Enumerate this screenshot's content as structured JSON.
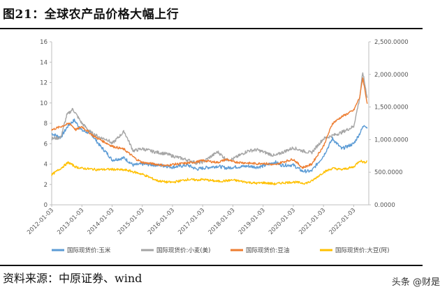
{
  "title": "图21：全球农产品价格大幅上行",
  "source": "资料来源：中原证券、wind",
  "watermark": "头条 @财是",
  "chart_data": {
    "type": "line",
    "title": "图21：全球农产品价格大幅上行",
    "xlabel": "",
    "ylabel": "",
    "x_ticks": [
      "2012-01-03",
      "2013-01-03",
      "2014-01-03",
      "2015-01-03",
      "2016-01-03",
      "2017-01-03",
      "2018-01-03",
      "2019-01-03",
      "2020-01-03",
      "2021-01-03",
      "2022-01-03"
    ],
    "y_left_ticks": [
      "0",
      "2",
      "4",
      "6",
      "8",
      "10",
      "12",
      "14",
      "16"
    ],
    "y_right_ticks": [
      "0.0000",
      "500.0000",
      "1,000.0000",
      "1,500.0000",
      "2,000.0000",
      "2,500.0000"
    ],
    "ylim_left": [
      0,
      16
    ],
    "ylim_right": [
      0,
      2500
    ],
    "x_range": [
      2012.0,
      2022.5
    ],
    "grid": false,
    "legend_position": "bottom",
    "series": [
      {
        "name": "国际现货价:玉米",
        "axis": "left",
        "color": "#5b9bd5",
        "points": [
          [
            2012.0,
            7.0
          ],
          [
            2012.3,
            6.6
          ],
          [
            2012.55,
            7.8
          ],
          [
            2012.75,
            8.3
          ],
          [
            2013.0,
            7.3
          ],
          [
            2013.3,
            7.0
          ],
          [
            2013.6,
            5.8
          ],
          [
            2013.85,
            5.0
          ],
          [
            2014.0,
            4.4
          ],
          [
            2014.4,
            4.6
          ],
          [
            2014.7,
            3.9
          ],
          [
            2015.0,
            4.0
          ],
          [
            2015.5,
            3.9
          ],
          [
            2015.8,
            3.8
          ],
          [
            2016.0,
            3.7
          ],
          [
            2016.5,
            3.9
          ],
          [
            2016.8,
            3.5
          ],
          [
            2017.0,
            3.6
          ],
          [
            2017.5,
            3.8
          ],
          [
            2017.8,
            3.6
          ],
          [
            2018.0,
            3.7
          ],
          [
            2018.5,
            3.8
          ],
          [
            2018.8,
            3.7
          ],
          [
            2019.0,
            3.8
          ],
          [
            2019.4,
            4.2
          ],
          [
            2019.6,
            3.9
          ],
          [
            2020.0,
            3.9
          ],
          [
            2020.3,
            3.3
          ],
          [
            2020.6,
            3.3
          ],
          [
            2021.0,
            4.8
          ],
          [
            2021.3,
            6.5
          ],
          [
            2021.6,
            5.5
          ],
          [
            2022.0,
            6.0
          ],
          [
            2022.2,
            7.0
          ],
          [
            2022.35,
            7.9
          ],
          [
            2022.45,
            7.5
          ]
        ]
      },
      {
        "name": "国际现货价:小麦(美)",
        "axis": "left",
        "color": "#a5a5a5",
        "points": [
          [
            2012.0,
            6.5
          ],
          [
            2012.3,
            6.6
          ],
          [
            2012.5,
            8.8
          ],
          [
            2012.7,
            9.4
          ],
          [
            2013.0,
            8.0
          ],
          [
            2013.3,
            7.1
          ],
          [
            2013.6,
            6.6
          ],
          [
            2013.85,
            6.4
          ],
          [
            2014.0,
            6.0
          ],
          [
            2014.4,
            7.2
          ],
          [
            2014.7,
            5.3
          ],
          [
            2015.0,
            5.5
          ],
          [
            2015.4,
            5.2
          ],
          [
            2015.8,
            5.0
          ],
          [
            2016.0,
            4.8
          ],
          [
            2016.5,
            4.4
          ],
          [
            2016.8,
            4.1
          ],
          [
            2017.0,
            4.2
          ],
          [
            2017.5,
            5.2
          ],
          [
            2017.8,
            4.4
          ],
          [
            2018.0,
            4.5
          ],
          [
            2018.5,
            5.3
          ],
          [
            2018.8,
            5.4
          ],
          [
            2019.0,
            5.2
          ],
          [
            2019.4,
            4.8
          ],
          [
            2019.6,
            5.1
          ],
          [
            2020.0,
            5.6
          ],
          [
            2020.3,
            5.3
          ],
          [
            2020.6,
            5.1
          ],
          [
            2021.0,
            6.5
          ],
          [
            2021.3,
            6.8
          ],
          [
            2021.6,
            7.1
          ],
          [
            2022.0,
            7.7
          ],
          [
            2022.2,
            10.5
          ],
          [
            2022.3,
            13.0
          ],
          [
            2022.45,
            10.5
          ]
        ]
      },
      {
        "name": "国际现货价:豆油",
        "axis": "right",
        "color": "#ed7d31",
        "points": [
          [
            2012.0,
            1150
          ],
          [
            2012.3,
            1200
          ],
          [
            2012.6,
            1250
          ],
          [
            2012.8,
            1150
          ],
          [
            2013.0,
            1200
          ],
          [
            2013.4,
            1050
          ],
          [
            2013.8,
            950
          ],
          [
            2014.0,
            900
          ],
          [
            2014.4,
            850
          ],
          [
            2014.8,
            700
          ],
          [
            2015.0,
            650
          ],
          [
            2015.5,
            620
          ],
          [
            2015.8,
            600
          ],
          [
            2016.0,
            620
          ],
          [
            2016.5,
            640
          ],
          [
            2016.8,
            660
          ],
          [
            2017.0,
            680
          ],
          [
            2017.5,
            650
          ],
          [
            2017.8,
            700
          ],
          [
            2018.0,
            660
          ],
          [
            2018.5,
            640
          ],
          [
            2018.8,
            630
          ],
          [
            2019.0,
            640
          ],
          [
            2019.4,
            610
          ],
          [
            2019.6,
            650
          ],
          [
            2020.0,
            700
          ],
          [
            2020.3,
            570
          ],
          [
            2020.6,
            620
          ],
          [
            2021.0,
            900
          ],
          [
            2021.3,
            1250
          ],
          [
            2021.6,
            1350
          ],
          [
            2022.0,
            1450
          ],
          [
            2022.2,
            1650
          ],
          [
            2022.3,
            1950
          ],
          [
            2022.45,
            1550
          ]
        ]
      },
      {
        "name": "国际现货价:大豆(阿)",
        "axis": "right",
        "color": "#ffc000",
        "points": [
          [
            2012.0,
            460
          ],
          [
            2012.3,
            560
          ],
          [
            2012.55,
            650
          ],
          [
            2012.8,
            580
          ],
          [
            2013.0,
            560
          ],
          [
            2013.5,
            540
          ],
          [
            2014.0,
            545
          ],
          [
            2014.5,
            530
          ],
          [
            2015.0,
            470
          ],
          [
            2015.5,
            370
          ],
          [
            2015.8,
            350
          ],
          [
            2016.0,
            345
          ],
          [
            2016.5,
            390
          ],
          [
            2016.8,
            380
          ],
          [
            2017.0,
            390
          ],
          [
            2017.5,
            360
          ],
          [
            2017.8,
            370
          ],
          [
            2018.0,
            380
          ],
          [
            2018.5,
            345
          ],
          [
            2018.8,
            330
          ],
          [
            2019.0,
            340
          ],
          [
            2019.4,
            320
          ],
          [
            2019.6,
            335
          ],
          [
            2020.0,
            350
          ],
          [
            2020.4,
            330
          ],
          [
            2020.6,
            360
          ],
          [
            2021.0,
            500
          ],
          [
            2021.3,
            560
          ],
          [
            2021.6,
            540
          ],
          [
            2022.0,
            580
          ],
          [
            2022.2,
            680
          ],
          [
            2022.35,
            650
          ],
          [
            2022.45,
            670
          ]
        ]
      }
    ]
  }
}
